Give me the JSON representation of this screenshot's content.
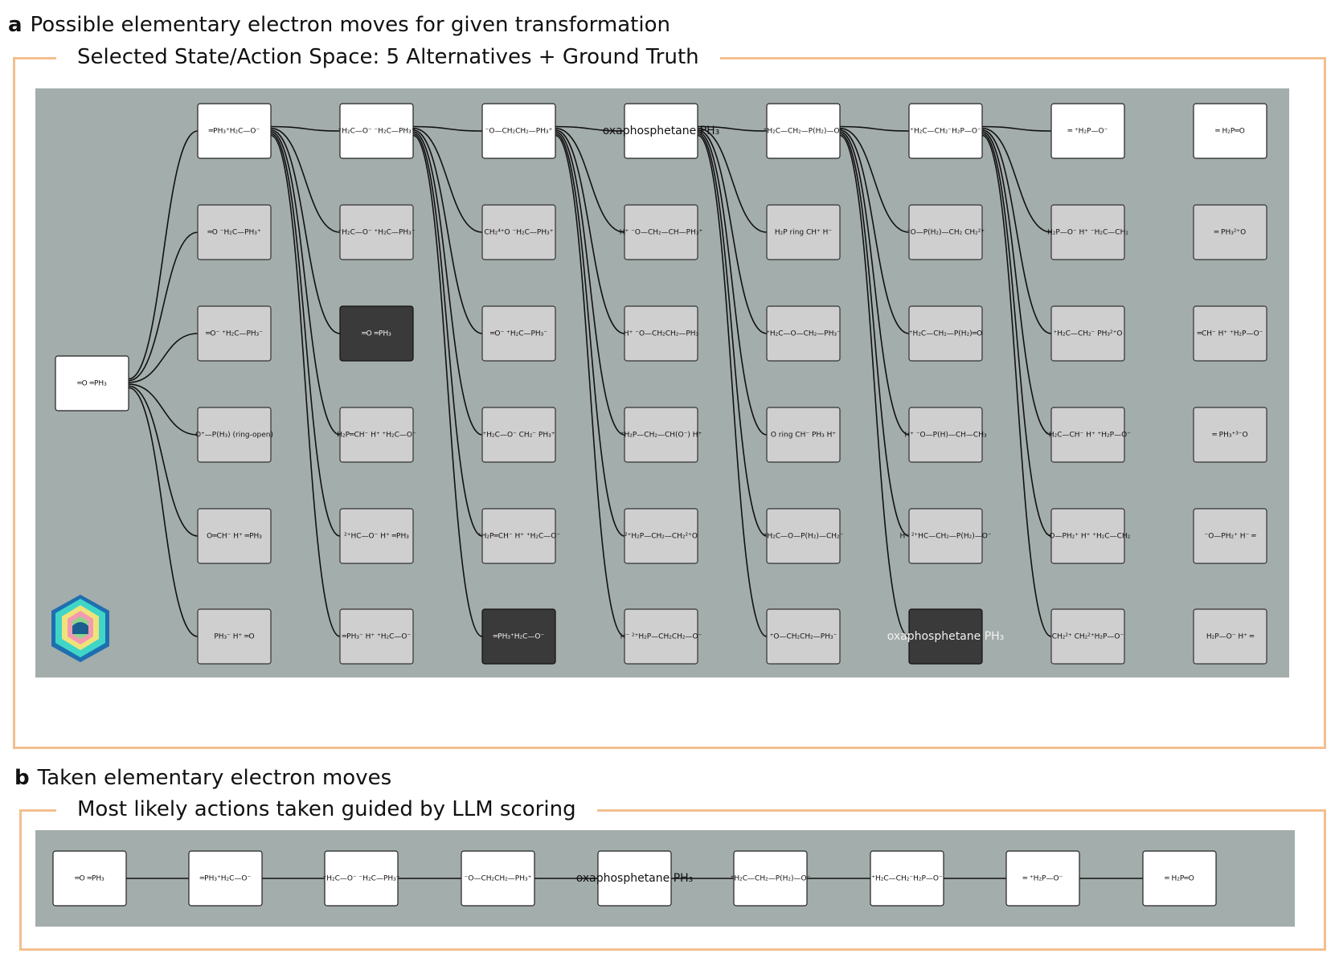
{
  "panel_a": {
    "letter": "a",
    "heading": "Possible elementary electron moves for given transformation",
    "box_title": "Selected State/Action Space: 5 Alternatives + Ground Truth"
  },
  "panel_b": {
    "letter": "b",
    "heading": "Taken  elementary electron moves",
    "box_title": "Most likely actions taken guided by LLM scoring"
  },
  "logo": {
    "name": "hexagon-logo-icon",
    "colors": [
      "#1e90c8",
      "#3fd6c8",
      "#f0e27a",
      "#f49ab0",
      "#8fd68a"
    ]
  },
  "colors": {
    "frame": "#f3bf8f",
    "panel_bg": "#a3adab",
    "node_white": "#ffffff",
    "node_gray": "#cfcfcf",
    "node_dark": "#3a3a3a"
  },
  "tree": {
    "start": "═O    ═PH₃",
    "columns": [
      {
        "main": "═PH₃⁺H₂C—O⁻",
        "alts": [
          "═O   ⁻H₂C—PH₃⁺",
          "═O⁻ ⁺H₂C—PH₃⁻",
          "O⁺—P(H₃) (ring-open)",
          "O═CH⁻  H⁺  ═PH₃",
          "PH₃⁻  H⁺  ═O"
        ],
        "selected": -1
      },
      {
        "main": "⁺H₂C—O⁻ ⁻H₂C—PH₃⁺",
        "alts": [
          "⁺H₂C—O⁻ ⁺H₂C—PH₃⁻",
          "═O    ═PH₃",
          "H₂P═CH⁻  H⁺ ⁺H₂C—O⁻",
          "²⁺HC—O⁻  H⁺  ═PH₃",
          "═PH₃⁻  H⁺ ⁺H₂C—O⁻"
        ],
        "selected": 1
      },
      {
        "main": "⁻O—CH₂CH₂—PH₃⁺",
        "alts": [
          "CH₂⁴⁺O ⁻H₂C—PH₃⁺",
          "═O⁻ ⁺H₂C—PH₃⁻",
          "⁺H₂C—O⁻   CH₂⁻ PH₃⁺",
          "⁺H₂P═CH⁻  H⁺ ⁺H₂C—O⁻",
          "═PH₃⁺H₂C—O⁻"
        ],
        "selected": 4
      },
      {
        "main": "oxaphosphetane PH₃",
        "alts": [
          "H⁺ ⁻O—CH₂—CH—PH₃⁺",
          "H⁺ ⁻O—CH₂CH₂—PH₃",
          "⁺H₂P—CH₂—CH(O⁻) H⁺",
          "²⁺H₂P—CH₂—CH₂²⁺O",
          "H⁻ ²⁺H₂P—CH₂CH₂—O⁻"
        ],
        "selected": -1
      },
      {
        "main": "⁺H₂C—CH₂—P(H₂)—O⁻",
        "alts": [
          "H₂P ring CH⁺  H⁻",
          "⁺H₂C—O—CH₂—PH₃⁻",
          "O ring CH⁻ PH₃  H⁺",
          "⁺H₂C—O—P(H₂)—CH₂⁻",
          "⁺O—CH₂CH₂—PH₃⁻"
        ],
        "selected": -1
      },
      {
        "main": "⁺H₂C—CH₂⁻H₂P—O⁻",
        "alts": [
          "⁻O—P(H₂)—CH₂ CH₂²⁺",
          "⁺H₂C—CH₂—P(H₂)═O",
          "H⁺ ⁻O—P(H)—CH—CH₃",
          "H⁻ ²⁺HC—CH₂—P(H₂)—O⁻",
          "oxaphosphetane PH₃"
        ],
        "selected": 4
      },
      {
        "main": "═   ⁺H₂P—O⁻",
        "alts": [
          "H₂P—O⁻  H⁺ ⁻H₂C—CH₂",
          "⁺H₂C—CH₂⁻ PH₃²⁺O",
          "⁺H₂C—CH⁻  H⁺ ⁺H₂P—O⁻",
          "⁻O—PH₂⁺  H⁺ ⁺H₂C—CH₂",
          "CH₂²⁺ CH₂²⁺H₂P—O⁻"
        ],
        "selected": -1
      },
      {
        "main": "═   H₂P═O",
        "alts": [
          "═   PH₃²⁺O",
          "═CH⁻  H⁺ ⁺H₂P—O⁻",
          "═   PH₃⁺³⁻O",
          "⁻O—PH₂⁺  H⁻  ═",
          "H₂P—O⁻  H⁺  ═"
        ],
        "selected": -1
      }
    ]
  },
  "taken_path": [
    "═O    ═PH₃",
    "═PH₃⁺H₂C—O⁻",
    "⁺H₂C—O⁻ ⁻H₂C—PH₃⁺",
    "⁻O—CH₂CH₂—PH₃⁺",
    "oxaphosphetane PH₃",
    "⁺H₂C—CH₂—P(H₂)—O⁻",
    "⁺H₂C—CH₂⁻H₂P—O⁻",
    "═   ⁺H₂P—O⁻",
    "═   H₂P═O"
  ]
}
